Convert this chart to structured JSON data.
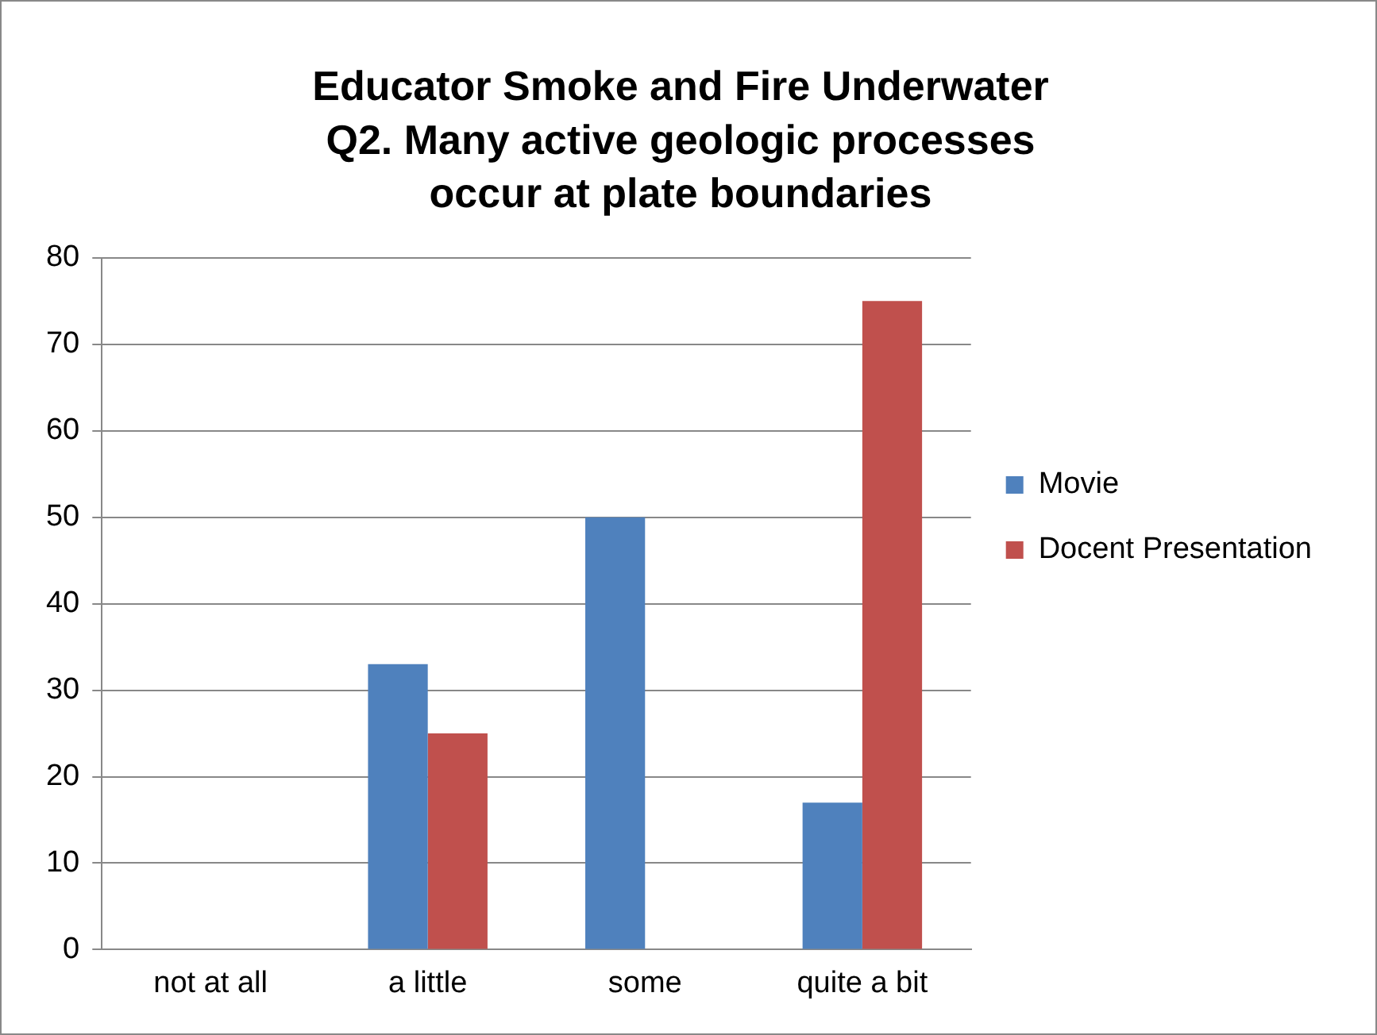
{
  "chart_data": {
    "type": "bar",
    "title": "Educator Smoke and Fire Underwater Q2. Many active geologic processes occur at plate boundaries",
    "categories": [
      "not at all",
      "a little",
      "some",
      "quite a bit"
    ],
    "series": [
      {
        "name": "Movie",
        "color": "#4f81bd",
        "values": [
          0,
          33,
          50,
          17
        ]
      },
      {
        "name": "Docent Presentation",
        "color": "#c0504d",
        "values": [
          0,
          25,
          0,
          75
        ]
      }
    ],
    "ylim": [
      0,
      80
    ],
    "yticks": [
      0,
      10,
      20,
      30,
      40,
      50,
      60,
      70,
      80
    ],
    "grid": "y",
    "legend": "right"
  }
}
